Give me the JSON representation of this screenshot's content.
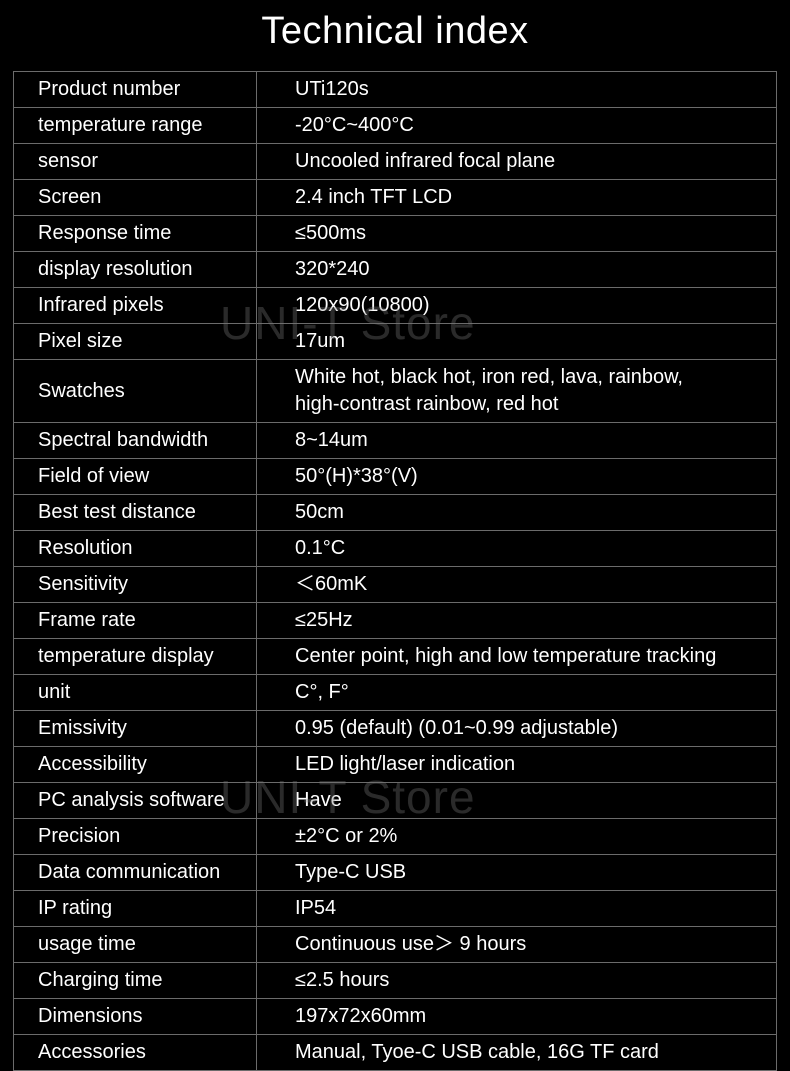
{
  "title": "Technical index",
  "watermark_text": "UNI-T Store",
  "background_color": "#000000",
  "text_color": "#ffffff",
  "border_color": "#6b6b6b",
  "watermark_color": "rgba(120,120,120,0.35)",
  "title_fontsize": 38,
  "cell_fontsize": 20,
  "rows": [
    {
      "label": "Product number",
      "value": "UTi120s"
    },
    {
      "label": "temperature range",
      "value": "-20°C~400°C"
    },
    {
      "label": "sensor",
      "value": "Uncooled infrared focal plane"
    },
    {
      "label": "Screen",
      "value": "2.4 inch TFT LCD"
    },
    {
      "label": "Response time",
      "value": "≤500ms"
    },
    {
      "label": "display resolution",
      "value": "320*240"
    },
    {
      "label": "Infrared pixels",
      "value": "120x90(10800)"
    },
    {
      "label": "Pixel size",
      "value": "17um"
    },
    {
      "label": "Swatches",
      "value": "White hot, black hot, iron red, lava, rainbow,\n high-contrast rainbow, red hot"
    },
    {
      "label": "Spectral bandwidth",
      "value": "8~14um"
    },
    {
      "label": "Field of view",
      "value": "50°(H)*38°(V)"
    },
    {
      "label": "Best test distance",
      "value": "50cm"
    },
    {
      "label": "Resolution",
      "value": "0.1°C"
    },
    {
      "label": "Sensitivity",
      "value": "＜60mK"
    },
    {
      "label": "Frame rate",
      "value": "≤25Hz"
    },
    {
      "label": "temperature display",
      "value": "Center point, high and low temperature tracking"
    },
    {
      "label": "unit",
      "value": "C°, F°"
    },
    {
      "label": "Emissivity",
      "value": "0.95 (default) (0.01~0.99 adjustable)"
    },
    {
      "label": "Accessibility",
      "value": "LED light/laser indication"
    },
    {
      "label": "PC analysis software",
      "value": "Have"
    },
    {
      "label": "Precision",
      "value": "±2°C or 2%"
    },
    {
      "label": "Data communication",
      "value": "Type-C USB"
    },
    {
      "label": "IP rating",
      "value": "IP54"
    },
    {
      "label": "usage time",
      "value": "Continuous use＞ 9 hours"
    },
    {
      "label": "Charging time",
      "value": "≤2.5 hours"
    },
    {
      "label": "Dimensions",
      "value": "197x72x60mm"
    },
    {
      "label": "Accessories",
      "value": "Manual, Tyoe-C USB cable, 16G TF card"
    }
  ]
}
